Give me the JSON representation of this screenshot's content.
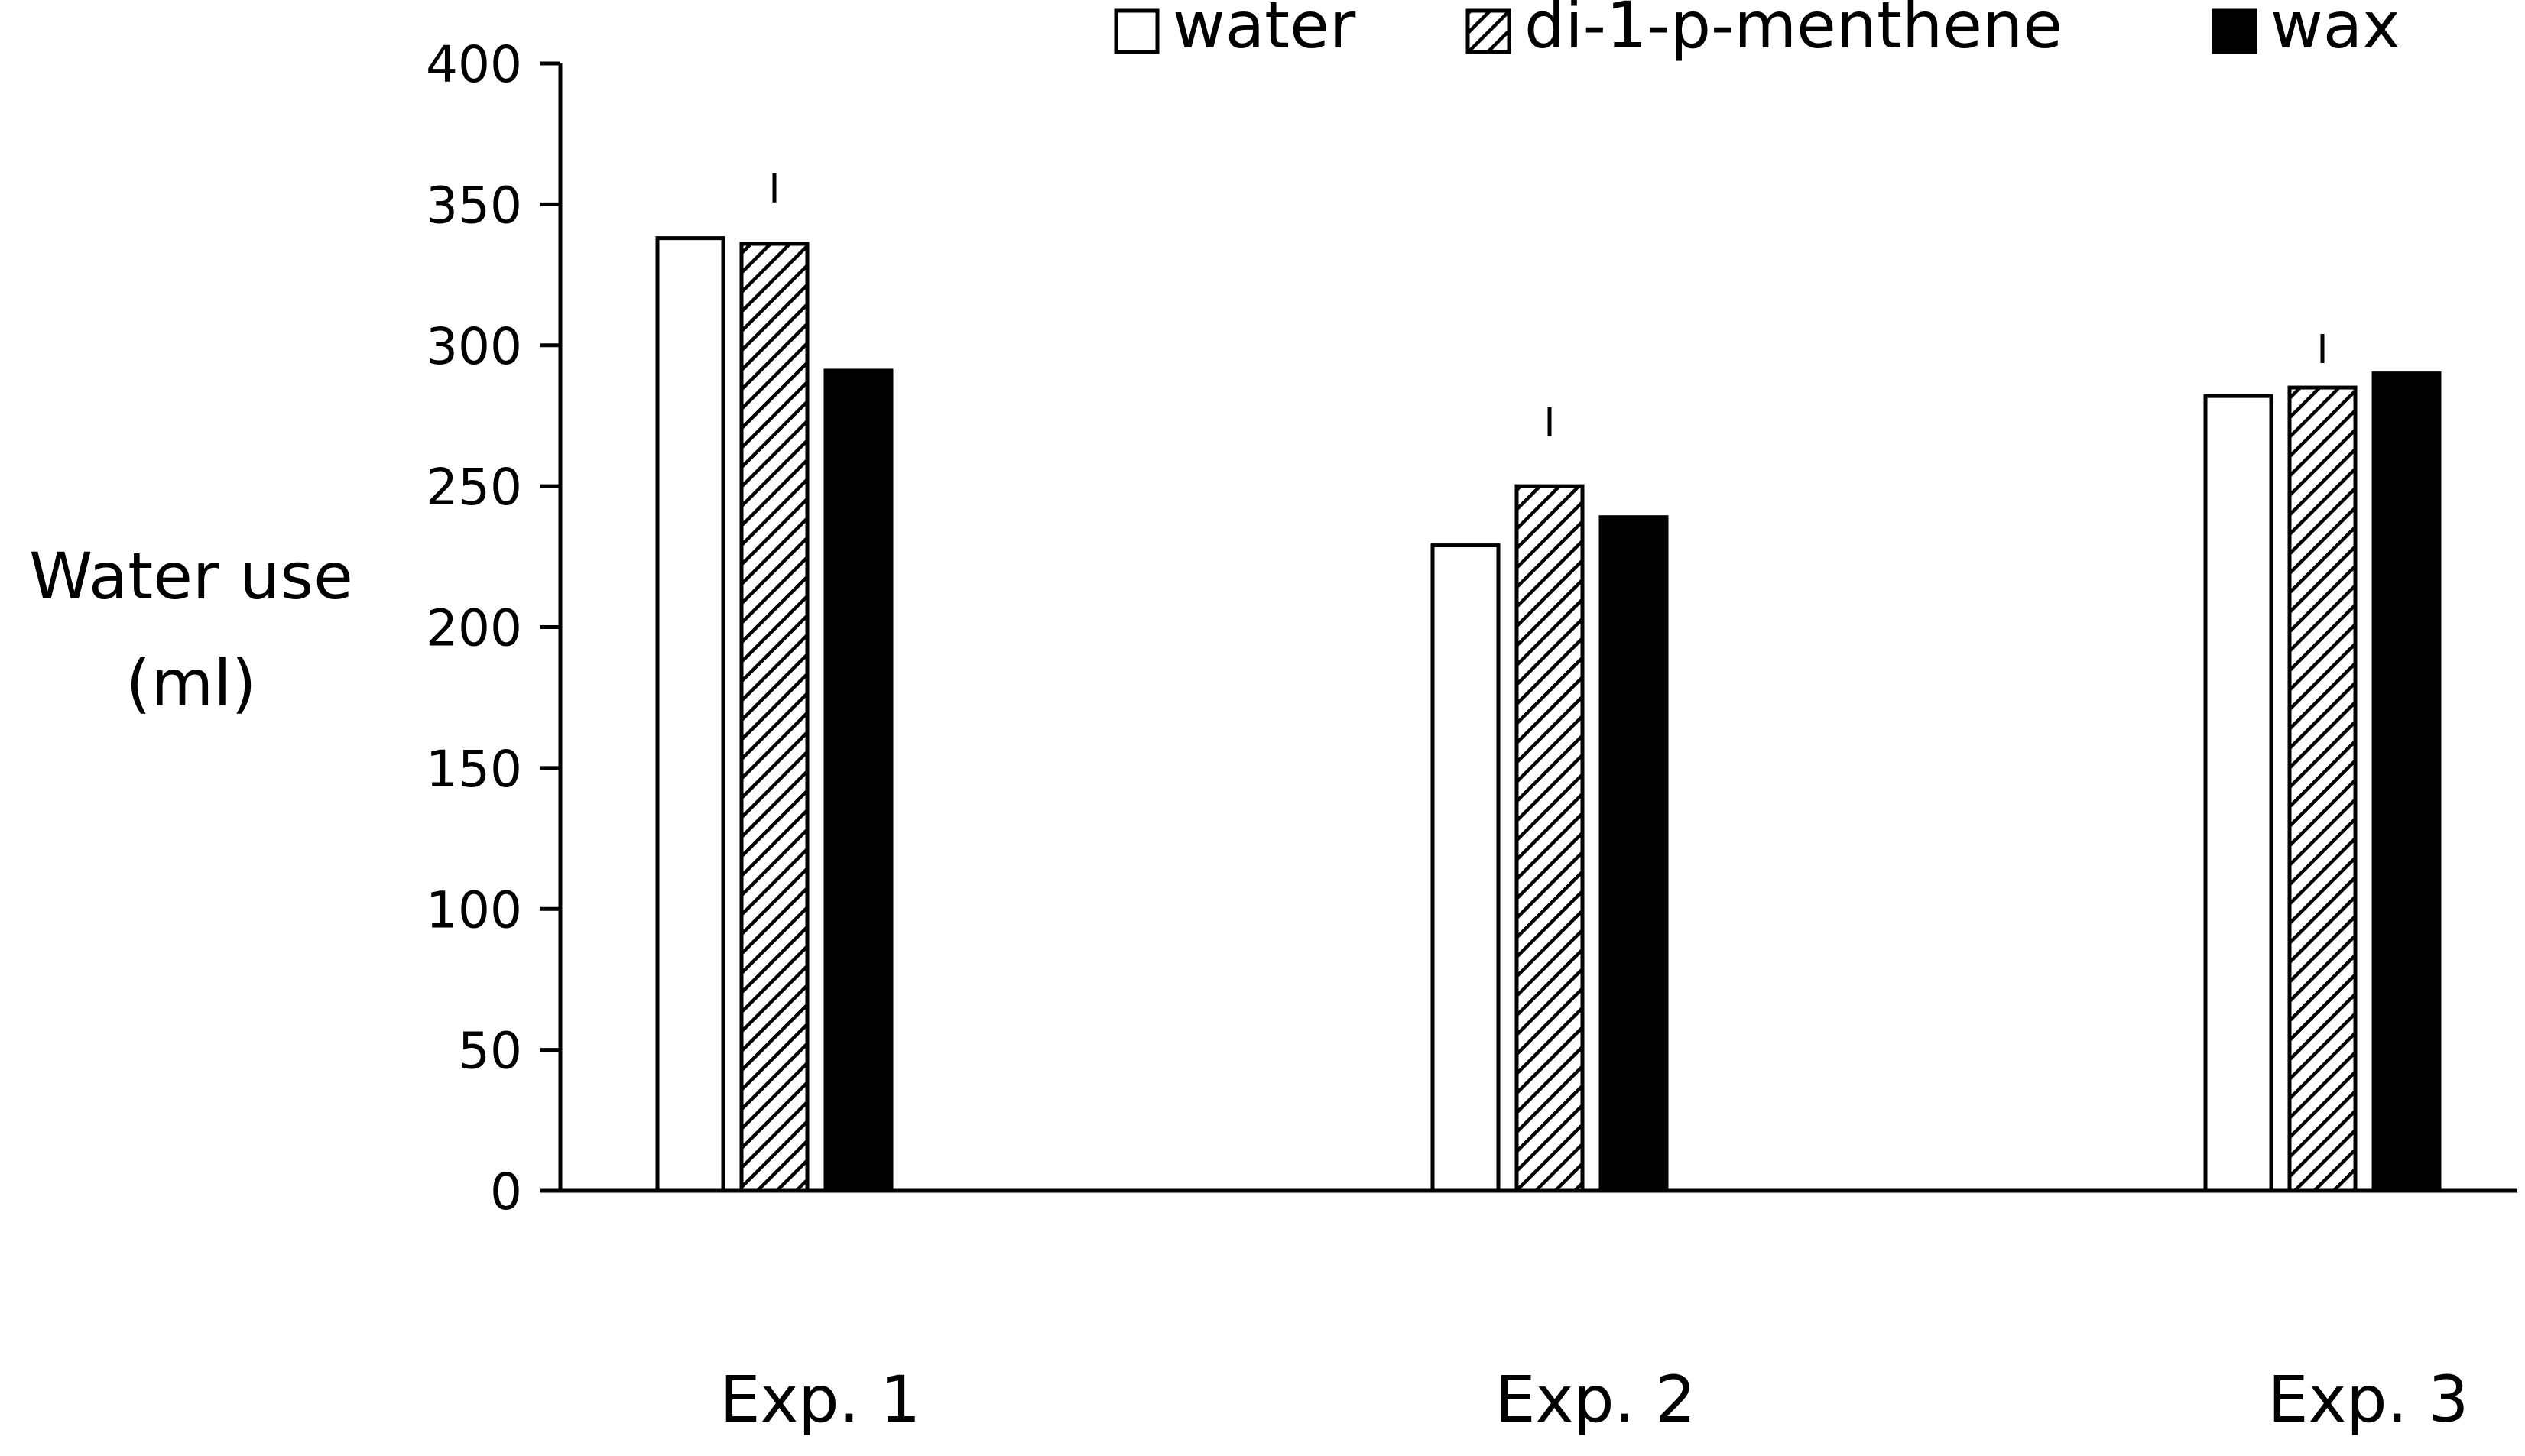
{
  "colors": {
    "water": "#ffffff",
    "di1pmenthene": "#ffffff",
    "wax": "#000000",
    "stroke": "#000000",
    "axis": "#000000"
  },
  "chart_data": {
    "type": "bar",
    "title": "",
    "xlabel": "",
    "ylabel_lines": [
      "Water use",
      "(ml)"
    ],
    "categories": [
      "Exp. 1",
      "Exp. 2",
      "Exp. 3"
    ],
    "ylim": [
      0,
      400
    ],
    "yticks": [
      0,
      50,
      100,
      150,
      200,
      250,
      300,
      350,
      400
    ],
    "grid": false,
    "legend_position": "top-right",
    "series": [
      {
        "name": "water",
        "pattern": "open",
        "values": [
          338,
          229,
          282
        ]
      },
      {
        "name": "di-1-p-menthene",
        "pattern": "hatched",
        "values": [
          336,
          250,
          285
        ]
      },
      {
        "name": "wax",
        "pattern": "solid",
        "values": [
          291,
          239,
          290
        ]
      }
    ],
    "error_bars": [
      {
        "series": "di-1-p-menthene",
        "category": "Exp. 1",
        "upper": 361
      },
      {
        "series": "di-1-p-menthene",
        "category": "Exp. 2",
        "upper": 278
      },
      {
        "series": "di-1-p-menthene",
        "category": "Exp. 3",
        "upper": 304
      }
    ]
  }
}
